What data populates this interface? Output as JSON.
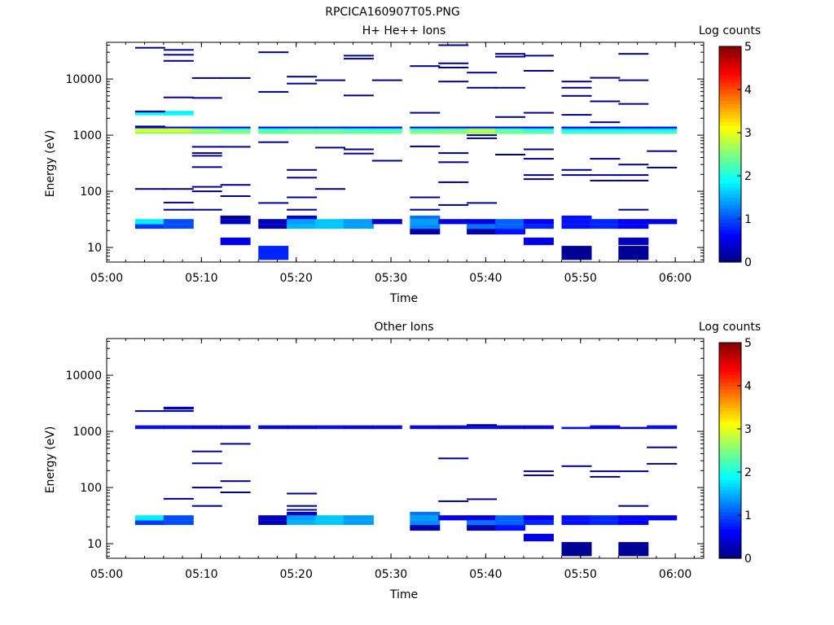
{
  "figure": {
    "title": "RPCICA160907T05.PNG"
  },
  "chart_data": [
    {
      "type": "heatmap",
      "title": "H+ He++ Ions",
      "xlabel": "Time",
      "ylabel": "Energy (eV)",
      "yscale": "log",
      "xlim": [
        "05:00",
        "06:03"
      ],
      "ylim": [
        5.5,
        45000
      ],
      "xticks": [
        "05:00",
        "05:10",
        "05:20",
        "05:30",
        "05:40",
        "05:50",
        "06:00"
      ],
      "yticks": [
        "10",
        "100",
        "1000",
        "10000"
      ],
      "colorbar": {
        "label": "Log counts",
        "min": 0,
        "max": 5,
        "ticks": [
          "0",
          "1",
          "2",
          "3",
          "4",
          "5"
        ]
      },
      "time_bin_starts": [
        "05:03",
        "05:06",
        "05:09",
        "05:12",
        "05:16",
        "05:19",
        "05:22",
        "05:25",
        "05:28",
        "05:32",
        "05:35",
        "05:38",
        "05:41",
        "05:44",
        "05:48",
        "05:51",
        "05:54",
        "05:57"
      ],
      "bands": [
        {
          "e_lo": 1050,
          "e_hi": 1150,
          "values": [
            2.6,
            2.6,
            2.5,
            2.5,
            2.4,
            2.4,
            2.4,
            2.4,
            2.4,
            2.5,
            2.5,
            2.6,
            2.4,
            2.3,
            2.2,
            2.2,
            2.2,
            2.2
          ]
        },
        {
          "e_lo": 1150,
          "e_hi": 1250,
          "values": [
            3.0,
            3.0,
            2.7,
            2.4,
            2.3,
            2.4,
            2.4,
            2.3,
            2.3,
            2.4,
            2.5,
            2.9,
            2.4,
            2.2,
            2.0,
            2.0,
            2.0,
            2.0
          ]
        },
        {
          "e_lo": 1250,
          "e_hi": 1330,
          "values": [
            2.8,
            2.8,
            2.3,
            2.0,
            1.9,
            2.0,
            2.0,
            1.9,
            1.9,
            2.0,
            2.1,
            2.4,
            2.0,
            1.8,
            1.6,
            1.6,
            1.6,
            1.6
          ]
        },
        {
          "e_lo": 1330,
          "e_hi": 1420,
          "values": [
            0.6,
            0.6,
            0.5,
            0.5,
            0.5,
            0.5,
            0.5,
            0.5,
            0.5,
            0.5,
            0.5,
            0.6,
            0.5,
            0.5,
            0.5,
            0.5,
            0.5,
            0.5
          ]
        },
        {
          "e_lo": 2250,
          "e_hi": 2450,
          "values": [
            2.0,
            1.9,
            null,
            null,
            null,
            null,
            null,
            null,
            null,
            null,
            null,
            null,
            null,
            null,
            null,
            null,
            null,
            null
          ]
        },
        {
          "e_lo": 2450,
          "e_hi": 2700,
          "values": [
            1.6,
            1.8,
            null,
            null,
            null,
            null,
            null,
            null,
            null,
            null,
            null,
            null,
            null,
            null,
            null,
            null,
            null,
            null
          ]
        },
        {
          "e_lo": 21.5,
          "e_hi": 26,
          "values": [
            0.9,
            1.0,
            null,
            null,
            0.3,
            1.5,
            1.6,
            1.4,
            null,
            1.3,
            null,
            1.2,
            1.1,
            0.8,
            0.7,
            0.8,
            0.6,
            null
          ]
        },
        {
          "e_lo": 26,
          "e_hi": 32,
          "values": [
            1.8,
            1.0,
            null,
            0.3,
            0.3,
            1.4,
            1.6,
            1.4,
            0.4,
            1.4,
            0.5,
            0.5,
            1.1,
            0.6,
            0.7,
            0.8,
            0.6,
            0.5
          ]
        },
        {
          "e_lo": 32,
          "e_hi": 37,
          "values": [
            null,
            null,
            null,
            0.2,
            null,
            0.4,
            null,
            null,
            null,
            1.2,
            null,
            null,
            null,
            null,
            0.7,
            null,
            null,
            null
          ]
        },
        {
          "e_lo": 17,
          "e_hi": 21.5,
          "values": [
            null,
            null,
            null,
            null,
            null,
            null,
            null,
            null,
            null,
            0.2,
            null,
            0.2,
            0.7,
            null,
            null,
            null,
            null,
            null
          ]
        },
        {
          "e_lo": 11,
          "e_hi": 15,
          "values": [
            null,
            null,
            null,
            0.5,
            null,
            null,
            null,
            null,
            null,
            null,
            null,
            null,
            null,
            0.5,
            null,
            null,
            0.3,
            null
          ]
        },
        {
          "e_lo": 6,
          "e_hi": 10.7,
          "values": [
            null,
            null,
            null,
            null,
            0.8,
            null,
            null,
            null,
            null,
            null,
            null,
            null,
            null,
            null,
            0.1,
            null,
            0.1,
            null
          ]
        }
      ],
      "lines": [
        [
          0,
          36000
        ],
        [
          1,
          33000
        ],
        [
          1,
          27000
        ],
        [
          1,
          21000
        ],
        [
          0,
          2650
        ],
        [
          0,
          1430
        ],
        [
          1,
          4700
        ],
        [
          2,
          4600
        ],
        [
          2,
          10400
        ],
        [
          3,
          10400
        ],
        [
          4,
          30000
        ],
        [
          4,
          5900
        ],
        [
          5,
          11000
        ],
        [
          5,
          8300
        ],
        [
          6,
          9500
        ],
        [
          7,
          26000
        ],
        [
          7,
          23000
        ],
        [
          7,
          5100
        ],
        [
          8,
          9500
        ],
        [
          9,
          17000
        ],
        [
          9,
          2500
        ],
        [
          10,
          40000
        ],
        [
          10,
          19000
        ],
        [
          10,
          16000
        ],
        [
          10,
          9000
        ],
        [
          11,
          13000
        ],
        [
          11,
          7000
        ],
        [
          12,
          28000
        ],
        [
          12,
          25000
        ],
        [
          12,
          7000
        ],
        [
          13,
          26000
        ],
        [
          13,
          14000
        ],
        [
          13,
          2500
        ],
        [
          14,
          9000
        ],
        [
          14,
          7000
        ],
        [
          14,
          5000
        ],
        [
          15,
          10500
        ],
        [
          15,
          4000
        ],
        [
          16,
          28000
        ],
        [
          16,
          9500
        ],
        [
          16,
          3600
        ],
        [
          12,
          2100
        ],
        [
          14,
          2300
        ],
        [
          15,
          1700
        ],
        [
          2,
          620
        ],
        [
          2,
          480
        ],
        [
          2,
          430
        ],
        [
          2,
          270
        ],
        [
          2,
          120
        ],
        [
          2,
          100
        ],
        [
          2,
          47
        ],
        [
          3,
          620
        ],
        [
          3,
          130
        ],
        [
          3,
          82
        ],
        [
          3,
          34
        ],
        [
          4,
          750
        ],
        [
          4,
          62
        ],
        [
          5,
          240
        ],
        [
          5,
          175
        ],
        [
          5,
          78
        ],
        [
          5,
          47
        ],
        [
          6,
          600
        ],
        [
          6,
          110
        ],
        [
          7,
          560
        ],
        [
          7,
          470
        ],
        [
          8,
          350
        ],
        [
          9,
          630
        ],
        [
          9,
          78
        ],
        [
          9,
          47
        ],
        [
          10,
          480
        ],
        [
          10,
          330
        ],
        [
          10,
          145
        ],
        [
          10,
          57
        ],
        [
          11,
          1000
        ],
        [
          11,
          880
        ],
        [
          11,
          62
        ],
        [
          12,
          450
        ],
        [
          13,
          560
        ],
        [
          13,
          380
        ],
        [
          13,
          195
        ],
        [
          13,
          165
        ],
        [
          14,
          240
        ],
        [
          14,
          195
        ],
        [
          15,
          380
        ],
        [
          15,
          195
        ],
        [
          15,
          155
        ],
        [
          16,
          300
        ],
        [
          16,
          195
        ],
        [
          16,
          155
        ],
        [
          16,
          47
        ],
        [
          17,
          520
        ],
        [
          17,
          265
        ],
        [
          0,
          110
        ],
        [
          1,
          110
        ],
        [
          1,
          63
        ],
        [
          1,
          47
        ]
      ]
    },
    {
      "type": "heatmap",
      "title": "Other Ions",
      "xlabel": "Time",
      "ylabel": "Energy (eV)",
      "yscale": "log",
      "xlim": [
        "05:00",
        "06:03"
      ],
      "ylim": [
        5.5,
        45000
      ],
      "xticks": [
        "05:00",
        "05:10",
        "05:20",
        "05:30",
        "05:40",
        "05:50",
        "06:00"
      ],
      "yticks": [
        "10",
        "100",
        "1000",
        "10000"
      ],
      "colorbar": {
        "label": "Log counts",
        "min": 0,
        "max": 5,
        "ticks": [
          "0",
          "1",
          "2",
          "3",
          "4",
          "5"
        ]
      },
      "time_bin_starts": [
        "05:03",
        "05:06",
        "05:09",
        "05:12",
        "05:16",
        "05:19",
        "05:22",
        "05:25",
        "05:28",
        "05:32",
        "05:35",
        "05:38",
        "05:41",
        "05:44",
        "05:48",
        "05:51",
        "05:54",
        "05:57"
      ],
      "bands": [
        {
          "e_lo": 1100,
          "e_hi": 1200,
          "values": [
            0.7,
            0.7,
            0.6,
            0.6,
            0.6,
            0.6,
            0.7,
            0.6,
            0.6,
            0.6,
            0.6,
            0.7,
            0.6,
            0.6,
            0.7,
            0.6,
            0.3,
            0.7
          ]
        },
        {
          "e_lo": 1200,
          "e_hi": 1280,
          "values": [
            0.4,
            0.4,
            0.3,
            0.3,
            0.3,
            0.3,
            0.4,
            0.3,
            0.3,
            0.3,
            0.3,
            0.4,
            0.3,
            0.3,
            null,
            0.3,
            null,
            0.4
          ]
        },
        {
          "e_lo": 2450,
          "e_hi": 2750,
          "values": [
            null,
            0.3,
            null,
            null,
            null,
            null,
            null,
            null,
            null,
            null,
            null,
            null,
            null,
            null,
            null,
            null,
            null,
            null
          ]
        },
        {
          "e_lo": 21.5,
          "e_hi": 26,
          "values": [
            0.9,
            1.0,
            null,
            null,
            0.3,
            1.5,
            1.6,
            1.4,
            null,
            1.3,
            null,
            1.2,
            1.1,
            0.8,
            0.7,
            0.8,
            0.6,
            null
          ]
        },
        {
          "e_lo": 26,
          "e_hi": 32,
          "values": [
            1.8,
            1.0,
            null,
            null,
            0.3,
            1.4,
            1.6,
            1.4,
            null,
            1.4,
            0.5,
            0.5,
            1.1,
            0.6,
            0.7,
            0.8,
            0.6,
            0.5
          ]
        },
        {
          "e_lo": 32,
          "e_hi": 37,
          "values": [
            null,
            null,
            null,
            null,
            null,
            0.4,
            null,
            null,
            null,
            1.2,
            null,
            null,
            null,
            null,
            null,
            null,
            null,
            null
          ]
        },
        {
          "e_lo": 17,
          "e_hi": 21.5,
          "values": [
            null,
            null,
            null,
            null,
            null,
            null,
            null,
            null,
            null,
            0.2,
            null,
            0.2,
            0.7,
            null,
            null,
            null,
            null,
            null
          ]
        },
        {
          "e_lo": 11,
          "e_hi": 15,
          "values": [
            null,
            null,
            null,
            null,
            null,
            null,
            null,
            null,
            null,
            null,
            null,
            null,
            null,
            0.5,
            null,
            null,
            null,
            null
          ]
        },
        {
          "e_lo": 6,
          "e_hi": 10.7,
          "values": [
            null,
            null,
            null,
            null,
            null,
            null,
            null,
            null,
            null,
            null,
            null,
            null,
            null,
            null,
            0.1,
            null,
            0.1,
            null
          ]
        }
      ],
      "lines": [
        [
          0,
          2300
        ],
        [
          1,
          2300
        ],
        [
          2,
          440
        ],
        [
          2,
          270
        ],
        [
          2,
          100
        ],
        [
          2,
          47
        ],
        [
          3,
          600
        ],
        [
          3,
          130
        ],
        [
          3,
          82
        ],
        [
          1,
          63
        ],
        [
          5,
          78
        ],
        [
          5,
          47
        ],
        [
          5,
          40
        ],
        [
          10,
          330
        ],
        [
          10,
          57
        ],
        [
          11,
          62
        ],
        [
          13,
          195
        ],
        [
          13,
          165
        ],
        [
          14,
          240
        ],
        [
          15,
          195
        ],
        [
          15,
          155
        ],
        [
          16,
          195
        ],
        [
          16,
          47
        ],
        [
          17,
          520
        ],
        [
          17,
          265
        ],
        [
          11,
          1300
        ]
      ]
    }
  ]
}
